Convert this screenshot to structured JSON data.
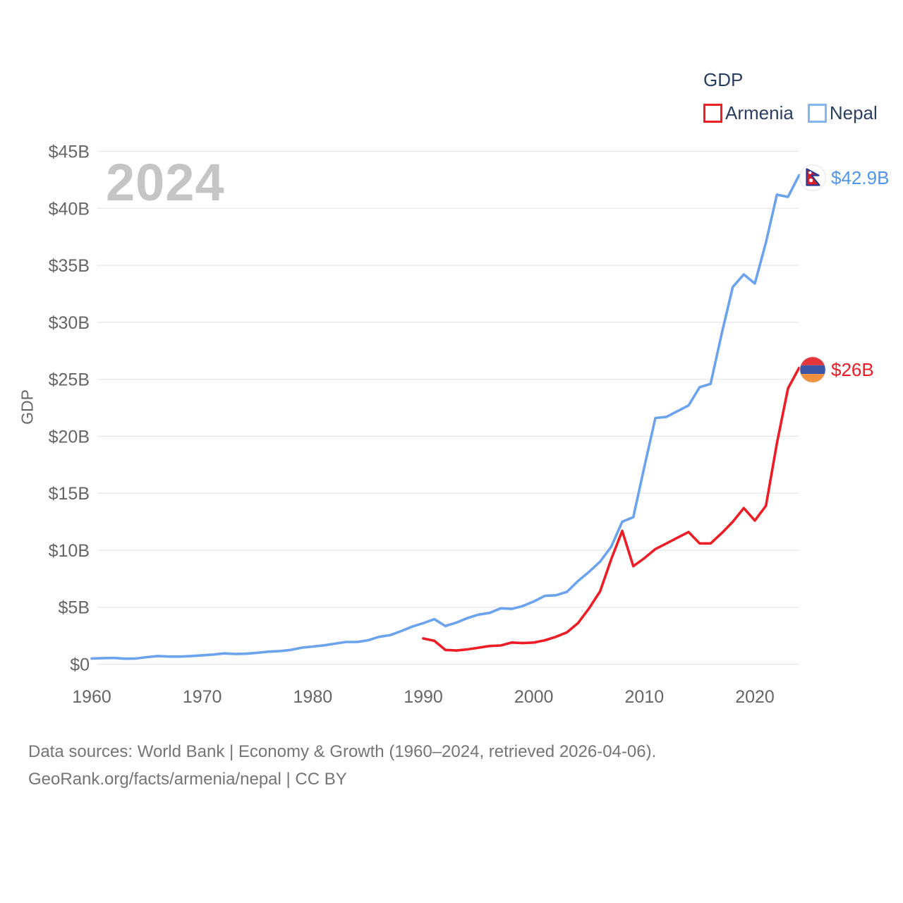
{
  "watermark": "2024",
  "legend": {
    "title": "GDP",
    "items": [
      {
        "label": "Armenia",
        "color": "#ee1c25"
      },
      {
        "label": "Nepal",
        "color": "#85b5ef"
      }
    ]
  },
  "chart_data": {
    "type": "line",
    "title": "GDP",
    "xlabel": "",
    "ylabel": "GDP",
    "xlim": [
      1960,
      2024
    ],
    "ylim": [
      0,
      45
    ],
    "grid": true,
    "legend_position": "top-right",
    "x_ticks": [
      1960,
      1970,
      1980,
      1990,
      2000,
      2010,
      2020
    ],
    "y_ticks": [
      {
        "value": 0,
        "label": "$0"
      },
      {
        "value": 5,
        "label": "$5B"
      },
      {
        "value": 10,
        "label": "$10B"
      },
      {
        "value": 15,
        "label": "$15B"
      },
      {
        "value": 20,
        "label": "$20B"
      },
      {
        "value": 25,
        "label": "$25B"
      },
      {
        "value": 30,
        "label": "$30B"
      },
      {
        "value": 35,
        "label": "$35B"
      },
      {
        "value": 40,
        "label": "$40B"
      },
      {
        "value": 45,
        "label": "$45B"
      }
    ],
    "units": "billions USD",
    "series": [
      {
        "name": "Armenia",
        "color": "#ee1c25",
        "end_label": "$26B",
        "start_year": 1990,
        "values": [
          2.26,
          2.05,
          1.25,
          1.2,
          1.3,
          1.45,
          1.6,
          1.64,
          1.9,
          1.85,
          1.9,
          2.1,
          2.4,
          2.8,
          3.6,
          4.9,
          6.4,
          9.2,
          11.7,
          8.6,
          9.3,
          10.1,
          10.6,
          11.1,
          11.6,
          10.6,
          10.6,
          11.5,
          12.5,
          13.7,
          12.6,
          13.9,
          19.4,
          24.2,
          26.0
        ]
      },
      {
        "name": "Nepal",
        "color": "#6ba3ee",
        "label_color": "#4f97ed",
        "end_label": "$42.9B",
        "start_year": 1960,
        "values": [
          0.5,
          0.53,
          0.55,
          0.48,
          0.5,
          0.62,
          0.72,
          0.67,
          0.67,
          0.72,
          0.78,
          0.85,
          0.95,
          0.9,
          0.92,
          1.0,
          1.1,
          1.15,
          1.25,
          1.45,
          1.55,
          1.65,
          1.8,
          1.95,
          1.95,
          2.1,
          2.4,
          2.55,
          2.9,
          3.3,
          3.6,
          3.95,
          3.35,
          3.65,
          4.05,
          4.35,
          4.5,
          4.9,
          4.85,
          5.1,
          5.5,
          6.0,
          6.05,
          6.35,
          7.3,
          8.1,
          9.0,
          10.3,
          12.5,
          12.9,
          17.3,
          21.6,
          21.7,
          22.2,
          22.7,
          24.3,
          24.6,
          29.0,
          33.1,
          34.2,
          33.4,
          37.0,
          41.2,
          41.0,
          42.9
        ]
      }
    ]
  },
  "end_labels": {
    "armenia": {
      "text": "$26B",
      "color": "#ee1c25"
    },
    "nepal": {
      "text": "$42.9B",
      "color": "#4f97ed"
    }
  },
  "colors": {
    "grid": "#e8e8e8",
    "tick_text": "#666666",
    "legend_text": "#2a3f5f",
    "watermark": "#c5c5c5",
    "footer_text": "#757575"
  },
  "footer": {
    "line1": "Data sources: World Bank | Economy & Growth (1960–2024, retrieved 2026-04-06).",
    "line2": "GeoRank.org/facts/armenia/nepal | CC BY"
  }
}
